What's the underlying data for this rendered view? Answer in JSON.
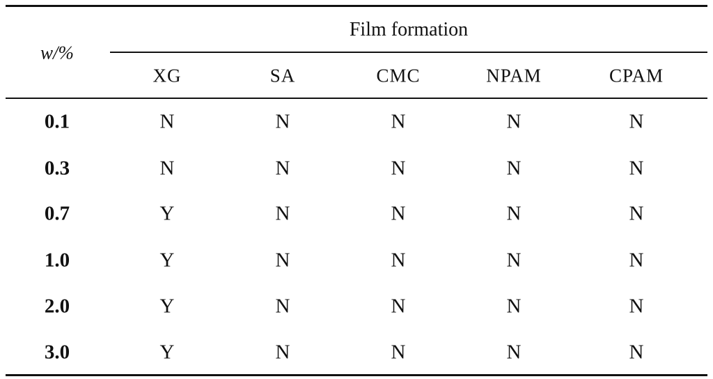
{
  "table": {
    "row_header_title": "w/%",
    "group_title": "Film formation",
    "columns": [
      "XG",
      "SA",
      "CMC",
      "NPAM",
      "CPAM"
    ],
    "rows": [
      {
        "label": "0.1",
        "values": [
          "N",
          "N",
          "N",
          "N",
          "N"
        ]
      },
      {
        "label": "0.3",
        "values": [
          "N",
          "N",
          "N",
          "N",
          "N"
        ]
      },
      {
        "label": "0.7",
        "values": [
          "Y",
          "N",
          "N",
          "N",
          "N"
        ]
      },
      {
        "label": "1.0",
        "values": [
          "Y",
          "N",
          "N",
          "N",
          "N"
        ]
      },
      {
        "label": "2.0",
        "values": [
          "Y",
          "N",
          "N",
          "N",
          "N"
        ]
      },
      {
        "label": "3.0",
        "values": [
          "Y",
          "N",
          "N",
          "N",
          "N"
        ]
      }
    ]
  }
}
